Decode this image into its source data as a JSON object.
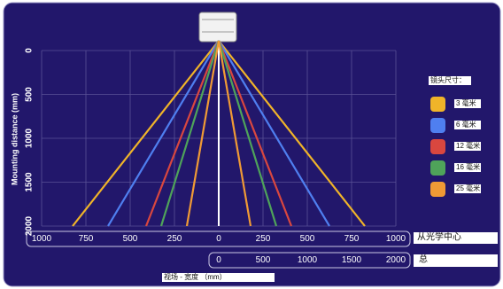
{
  "chart_data": {
    "type": "fov",
    "ylabel": "Mounting distance (mm)",
    "xlabel": "视场 - 宽度 （mm）",
    "legend_title": "镜头尺寸：",
    "scale_labels": [
      "从光学中心",
      "总"
    ],
    "ylim": [
      0,
      2000
    ],
    "yticks": [
      0,
      500,
      1000,
      1500,
      2000
    ],
    "xlim": [
      -1000,
      1000
    ],
    "xticks": [
      {
        "value": -1000,
        "label": "1000"
      },
      {
        "value": -750,
        "label": "750"
      },
      {
        "value": -500,
        "label": "500"
      },
      {
        "value": -250,
        "label": "250"
      },
      0,
      250,
      500,
      750,
      1000
    ],
    "x2lim": [
      0,
      2000
    ],
    "x2ticks": [
      0,
      500,
      1000,
      1500,
      2000
    ],
    "grid": true,
    "series": [
      {
        "name": "3 毫米",
        "color": "#f0b429",
        "values": [
          825
        ]
      },
      {
        "name": "6 毫米",
        "color": "#4f7ff0",
        "values": [
          625
        ]
      },
      {
        "name": "12 毫米",
        "color": "#d9473f",
        "values": [
          410
        ]
      },
      {
        "name": "16 毫米",
        "color": "#4fa35a",
        "values": [
          325
        ]
      },
      {
        "name": "25 毫米",
        "color": "#f09a35",
        "values": [
          180
        ]
      }
    ]
  }
}
